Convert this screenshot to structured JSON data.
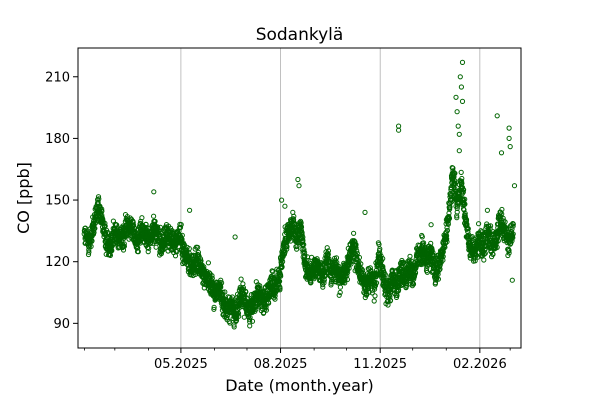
{
  "chart_data": {
    "type": "scatter",
    "title": "Sodankylä",
    "xlabel": "Date (month.year)",
    "ylabel": "CO [ppb]",
    "x_range": [
      "2025-01-26",
      "2026-03-11"
    ],
    "ylim": [
      78,
      224
    ],
    "y_ticks": [
      90,
      120,
      150,
      180,
      210
    ],
    "x_ticks": [
      {
        "date": "2025-05-01",
        "label": "05.2025"
      },
      {
        "date": "2025-08-01",
        "label": "08.2025"
      },
      {
        "date": "2025-11-01",
        "label": "11.2025"
      },
      {
        "date": "2026-02-01",
        "label": "02.2026"
      }
    ],
    "x_minor_ticks": [
      "2025-02-01",
      "2025-03-01",
      "2025-04-01",
      "2025-06-01",
      "2025-07-01",
      "2025-09-01",
      "2025-10-01",
      "2025-12-01",
      "2026-01-01",
      "2026-03-01"
    ],
    "grid": "vertical-major",
    "marker_color": "#006400",
    "series": [
      {
        "values": [
          [
            "2025-02-01",
            133
          ],
          [
            "2025-02-05",
            129
          ],
          [
            "2025-02-09",
            136
          ],
          [
            "2025-02-13",
            146
          ],
          [
            "2025-02-17",
            141
          ],
          [
            "2025-02-21",
            130
          ],
          [
            "2025-02-25",
            128
          ],
          [
            "2025-03-01",
            135
          ],
          [
            "2025-03-05",
            132
          ],
          [
            "2025-03-09",
            131
          ],
          [
            "2025-03-13",
            140
          ],
          [
            "2025-03-17",
            136
          ],
          [
            "2025-03-21",
            129
          ],
          [
            "2025-03-25",
            135
          ],
          [
            "2025-03-29",
            133
          ],
          [
            "2025-04-02",
            131
          ],
          [
            "2025-04-06",
            137
          ],
          [
            "2025-04-10",
            132
          ],
          [
            "2025-04-14",
            128
          ],
          [
            "2025-04-18",
            134
          ],
          [
            "2025-04-22",
            130
          ],
          [
            "2025-04-26",
            129
          ],
          [
            "2025-04-30",
            133
          ],
          [
            "2025-05-04",
            124
          ],
          [
            "2025-05-08",
            120
          ],
          [
            "2025-05-12",
            117
          ],
          [
            "2025-05-16",
            121
          ],
          [
            "2025-05-20",
            115
          ],
          [
            "2025-05-24",
            113
          ],
          [
            "2025-05-28",
            110
          ],
          [
            "2025-06-01",
            104
          ],
          [
            "2025-06-05",
            107
          ],
          [
            "2025-06-09",
            101
          ],
          [
            "2025-06-13",
            96
          ],
          [
            "2025-06-17",
            99
          ],
          [
            "2025-06-21",
            94
          ],
          [
            "2025-06-25",
            104
          ],
          [
            "2025-06-29",
            101
          ],
          [
            "2025-07-03",
            96
          ],
          [
            "2025-07-07",
            100
          ],
          [
            "2025-07-11",
            105
          ],
          [
            "2025-07-15",
            101
          ],
          [
            "2025-07-19",
            103
          ],
          [
            "2025-07-23",
            108
          ],
          [
            "2025-07-27",
            106
          ],
          [
            "2025-07-31",
            113
          ],
          [
            "2025-08-04",
            126
          ],
          [
            "2025-08-08",
            134
          ],
          [
            "2025-08-12",
            138
          ],
          [
            "2025-08-16",
            130
          ],
          [
            "2025-08-20",
            137
          ],
          [
            "2025-08-24",
            118
          ],
          [
            "2025-08-28",
            113
          ],
          [
            "2025-09-01",
            116
          ],
          [
            "2025-09-05",
            119
          ],
          [
            "2025-09-09",
            112
          ],
          [
            "2025-09-13",
            121
          ],
          [
            "2025-09-17",
            115
          ],
          [
            "2025-09-21",
            118
          ],
          [
            "2025-09-25",
            111
          ],
          [
            "2025-09-29",
            114
          ],
          [
            "2025-10-03",
            121
          ],
          [
            "2025-10-07",
            128
          ],
          [
            "2025-10-11",
            119
          ],
          [
            "2025-10-15",
            112
          ],
          [
            "2025-10-19",
            107
          ],
          [
            "2025-10-23",
            113
          ],
          [
            "2025-10-27",
            109
          ],
          [
            "2025-10-31",
            125
          ],
          [
            "2025-11-04",
            113
          ],
          [
            "2025-11-08",
            104
          ],
          [
            "2025-11-12",
            111
          ],
          [
            "2025-11-16",
            108
          ],
          [
            "2025-11-20",
            115
          ],
          [
            "2025-11-24",
            113
          ],
          [
            "2025-11-28",
            117
          ],
          [
            "2025-12-02",
            114
          ],
          [
            "2025-12-06",
            123
          ],
          [
            "2025-12-10",
            126
          ],
          [
            "2025-12-14",
            120
          ],
          [
            "2025-12-18",
            124
          ],
          [
            "2025-12-22",
            113
          ],
          [
            "2025-12-26",
            119
          ],
          [
            "2025-12-30",
            128
          ],
          [
            "2026-01-03",
            141
          ],
          [
            "2026-01-07",
            163
          ],
          [
            "2026-01-11",
            148
          ],
          [
            "2026-01-15",
            158
          ],
          [
            "2026-01-19",
            140
          ],
          [
            "2026-01-23",
            127
          ],
          [
            "2026-01-27",
            124
          ],
          [
            "2026-01-31",
            132
          ],
          [
            "2026-02-04",
            126
          ],
          [
            "2026-02-08",
            135
          ],
          [
            "2026-02-12",
            128
          ],
          [
            "2026-02-16",
            131
          ],
          [
            "2026-02-20",
            139
          ],
          [
            "2026-02-24",
            135
          ],
          [
            "2026-02-28",
            128
          ],
          [
            "2026-03-04",
            138
          ]
        ]
      }
    ],
    "annotations": [
      [
        "2025-04-06",
        154
      ],
      [
        "2025-05-09",
        145
      ],
      [
        "2025-06-20",
        132
      ],
      [
        "2025-08-02",
        150
      ],
      [
        "2025-08-05",
        147
      ],
      [
        "2025-08-17",
        160
      ],
      [
        "2025-08-18",
        157
      ],
      [
        "2025-10-18",
        144
      ],
      [
        "2025-11-18",
        186
      ],
      [
        "2025-11-18",
        184
      ],
      [
        "2025-12-18",
        138
      ],
      [
        "2026-01-14",
        210
      ],
      [
        "2026-01-16",
        217
      ],
      [
        "2026-01-15",
        205
      ],
      [
        "2026-01-16",
        198
      ],
      [
        "2026-01-10",
        200
      ],
      [
        "2026-01-11",
        193
      ],
      [
        "2026-01-12",
        186
      ],
      [
        "2026-01-13",
        182
      ],
      [
        "2026-01-13",
        174
      ],
      [
        "2026-01-09",
        163
      ],
      [
        "2026-01-17",
        155
      ],
      [
        "2026-02-08",
        145
      ],
      [
        "2026-02-17",
        191
      ],
      [
        "2026-02-21",
        173
      ],
      [
        "2026-02-28",
        185
      ],
      [
        "2026-02-28",
        180
      ],
      [
        "2026-03-01",
        176
      ],
      [
        "2026-03-05",
        157
      ],
      [
        "2026-03-03",
        111
      ]
    ]
  }
}
